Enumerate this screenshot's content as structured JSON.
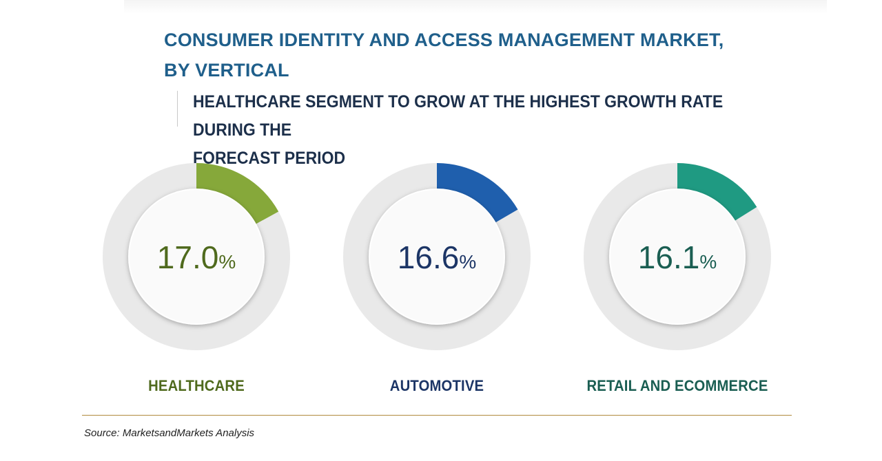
{
  "title_line1": "CONSUMER IDENTITY AND ACCESS MANAGEMENT MARKET,",
  "title_line2": "BY VERTICAL",
  "subtitle_line1": "HEALTHCARE SEGMENT TO GROW AT THE HIGHEST GROWTH RATE DURING THE",
  "subtitle_line2": "FORECAST PERIOD",
  "source": "Source: MarketsandMarkets Analysis",
  "colors": {
    "title": "#1f5f8b",
    "subtitle": "#1c2f4a",
    "track": "#e9e9e9",
    "inner": "#fafafa",
    "healthcare": "#86a83a",
    "healthcare_text": "#4f6a1d",
    "automotive": "#1f5fad",
    "automotive_text": "#1c3566",
    "retail": "#1f9a82",
    "retail_text": "#1a5e52"
  },
  "chart_data": {
    "type": "donut",
    "unit": "%",
    "title": "CONSUMER IDENTITY AND ACCESS MANAGEMENT MARKET, BY VERTICAL",
    "subtitle": "HEALTHCARE SEGMENT TO GROW AT THE HIGHEST GROWTH RATE DURING THE FORECAST PERIOD",
    "categories": [
      "HEALTHCARE",
      "AUTOMOTIVE",
      "RETAIL AND ECOMMERCE"
    ],
    "values": [
      17.0,
      16.6,
      16.1
    ],
    "value_labels": [
      "17.0",
      "16.6",
      "16.1"
    ]
  }
}
